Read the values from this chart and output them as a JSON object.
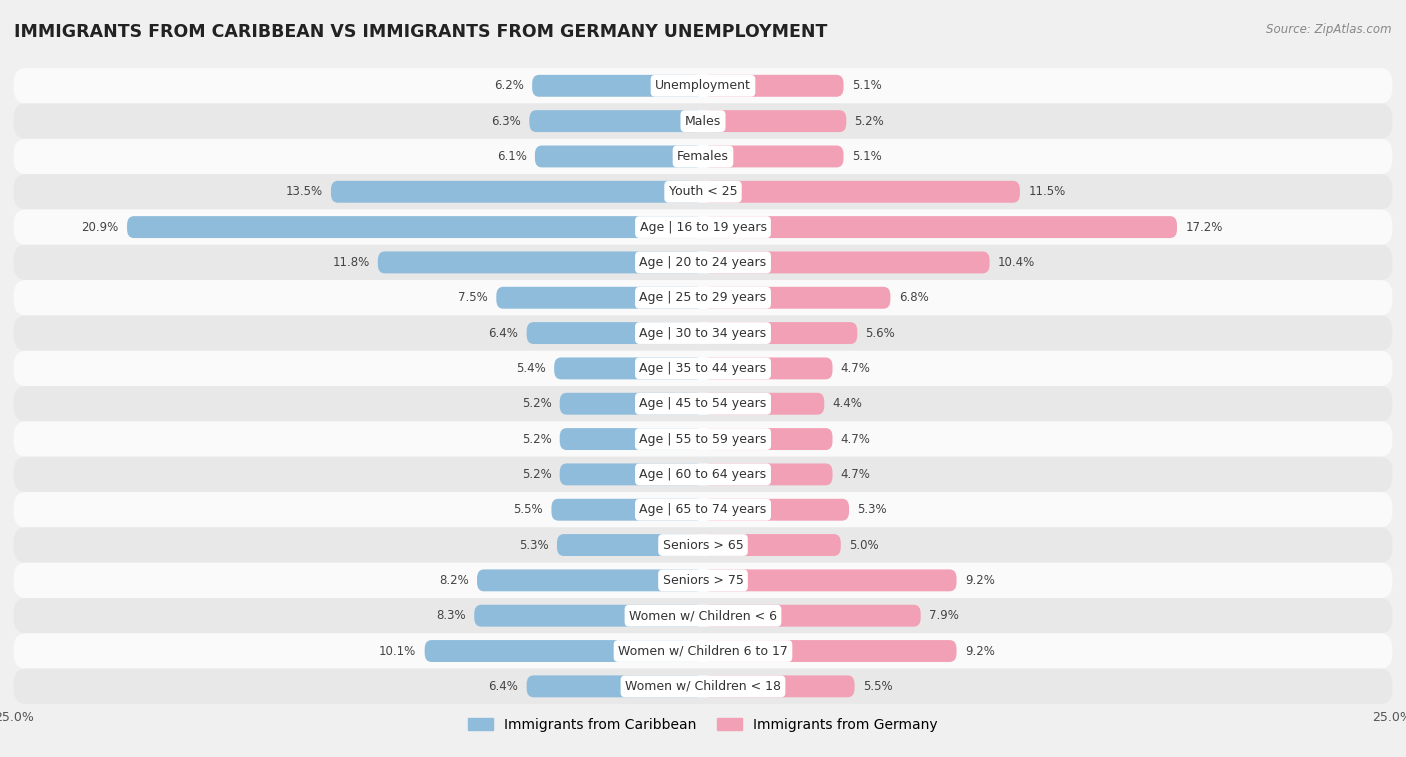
{
  "title": "IMMIGRANTS FROM CARIBBEAN VS IMMIGRANTS FROM GERMANY UNEMPLOYMENT",
  "source": "Source: ZipAtlas.com",
  "categories": [
    "Unemployment",
    "Males",
    "Females",
    "Youth < 25",
    "Age | 16 to 19 years",
    "Age | 20 to 24 years",
    "Age | 25 to 29 years",
    "Age | 30 to 34 years",
    "Age | 35 to 44 years",
    "Age | 45 to 54 years",
    "Age | 55 to 59 years",
    "Age | 60 to 64 years",
    "Age | 65 to 74 years",
    "Seniors > 65",
    "Seniors > 75",
    "Women w/ Children < 6",
    "Women w/ Children 6 to 17",
    "Women w/ Children < 18"
  ],
  "caribbean_values": [
    6.2,
    6.3,
    6.1,
    13.5,
    20.9,
    11.8,
    7.5,
    6.4,
    5.4,
    5.2,
    5.2,
    5.2,
    5.5,
    5.3,
    8.2,
    8.3,
    10.1,
    6.4
  ],
  "germany_values": [
    5.1,
    5.2,
    5.1,
    11.5,
    17.2,
    10.4,
    6.8,
    5.6,
    4.7,
    4.4,
    4.7,
    4.7,
    5.3,
    5.0,
    9.2,
    7.9,
    9.2,
    5.5
  ],
  "caribbean_color": "#8fbcdb",
  "germany_color": "#f2a0b5",
  "caribbean_label": "Immigrants from Caribbean",
  "germany_label": "Immigrants from Germany",
  "xlim": 25.0,
  "bar_height": 0.62,
  "bg_color": "#f0f0f0",
  "row_even_color": "#fafafa",
  "row_odd_color": "#e8e8e8",
  "title_fontsize": 12.5,
  "label_fontsize": 9,
  "value_fontsize": 8.5,
  "legend_fontsize": 10
}
